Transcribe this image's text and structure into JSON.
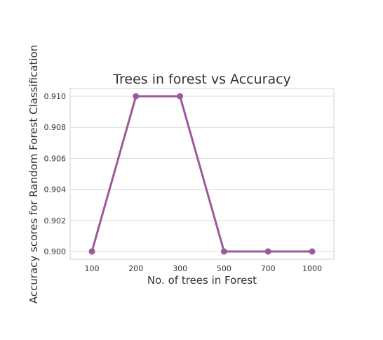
{
  "chart_data": {
    "type": "line",
    "title": "Trees in forest vs Accuracy",
    "xlabel": "No. of trees in Forest",
    "ylabel": "Accuracy scores for Random Forest Classification",
    "categories": [
      "100",
      "200",
      "300",
      "500",
      "700",
      "1000"
    ],
    "series": [
      {
        "values": [
          0.9,
          0.91,
          0.91,
          0.9,
          0.9,
          0.9
        ]
      }
    ],
    "ylim": [
      0.8995,
      0.9105
    ],
    "yticks": [
      "0.900",
      "0.902",
      "0.904",
      "0.906",
      "0.908",
      "0.910"
    ],
    "grid": "horizontal",
    "line_color": "#9b5a9b",
    "grid_color": "#dcdcdc",
    "frame_color": "#d0d0d0"
  }
}
